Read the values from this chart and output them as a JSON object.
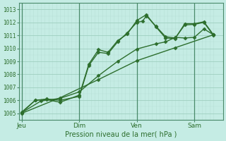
{
  "xlabel": "Pression niveau de la mer( hPa )",
  "bg_color": "#c5ece4",
  "grid_major_color": "#9ecfbf",
  "grid_minor_color": "#b8e0d6",
  "line_color": "#2d6e2d",
  "vline_color": "#4a8a6a",
  "ylim": [
    1004.5,
    1013.5
  ],
  "yticks": [
    1005,
    1006,
    1007,
    1008,
    1009,
    1010,
    1011,
    1012,
    1013
  ],
  "day_labels": [
    "Jeu",
    "Dim",
    "Ven",
    "Sam"
  ],
  "day_positions": [
    0,
    3,
    6,
    9
  ],
  "xlim": [
    -0.15,
    10.5
  ],
  "lines": [
    {
      "x": [
        0,
        0.7,
        1.3,
        2.0,
        3.0,
        3.5,
        4.0,
        4.5,
        5.0,
        5.5,
        6.0,
        6.3,
        6.5,
        7.0,
        7.5,
        8.0,
        8.5,
        9.0,
        9.5,
        10.0
      ],
      "y": [
        1005.1,
        1006.0,
        1006.1,
        1006.0,
        1006.3,
        1008.7,
        1009.7,
        1009.6,
        1010.5,
        1011.2,
        1012.0,
        1012.1,
        1012.5,
        1011.7,
        1010.9,
        1010.8,
        1011.8,
        1011.85,
        1012.0,
        1011.0
      ],
      "marker": "D",
      "markersize": 2.5,
      "linewidth": 1.0
    },
    {
      "x": [
        0,
        0.7,
        1.3,
        2.0,
        3.0,
        3.5,
        4.0,
        4.5,
        5.0,
        5.5,
        6.0,
        6.5,
        7.0,
        7.5,
        8.0,
        8.5,
        9.0,
        9.5,
        10.0
      ],
      "y": [
        1005.05,
        1006.0,
        1006.05,
        1005.85,
        1006.4,
        1008.8,
        1009.9,
        1009.7,
        1010.6,
        1011.1,
        1012.15,
        1012.6,
        1011.65,
        1010.8,
        1010.75,
        1011.9,
        1011.9,
        1012.05,
        1011.05
      ],
      "marker": "D",
      "markersize": 2.5,
      "linewidth": 1.0
    },
    {
      "x": [
        0,
        1.0,
        2.0,
        3.0,
        4.0,
        5.0,
        6.0,
        7.0,
        7.5,
        8.0,
        8.5,
        9.0,
        9.5,
        10.0
      ],
      "y": [
        1005.05,
        1005.95,
        1006.15,
        1006.65,
        1007.9,
        1009.0,
        1009.95,
        1010.35,
        1010.5,
        1010.85,
        1010.8,
        1010.85,
        1011.5,
        1011.05
      ],
      "marker": "D",
      "markersize": 2.5,
      "linewidth": 1.0
    },
    {
      "x": [
        0,
        2.0,
        4.0,
        6.0,
        8.0,
        10.0
      ],
      "y": [
        1005.0,
        1006.2,
        1007.6,
        1009.05,
        1010.05,
        1011.05
      ],
      "marker": "D",
      "markersize": 2.5,
      "linewidth": 1.0
    }
  ]
}
